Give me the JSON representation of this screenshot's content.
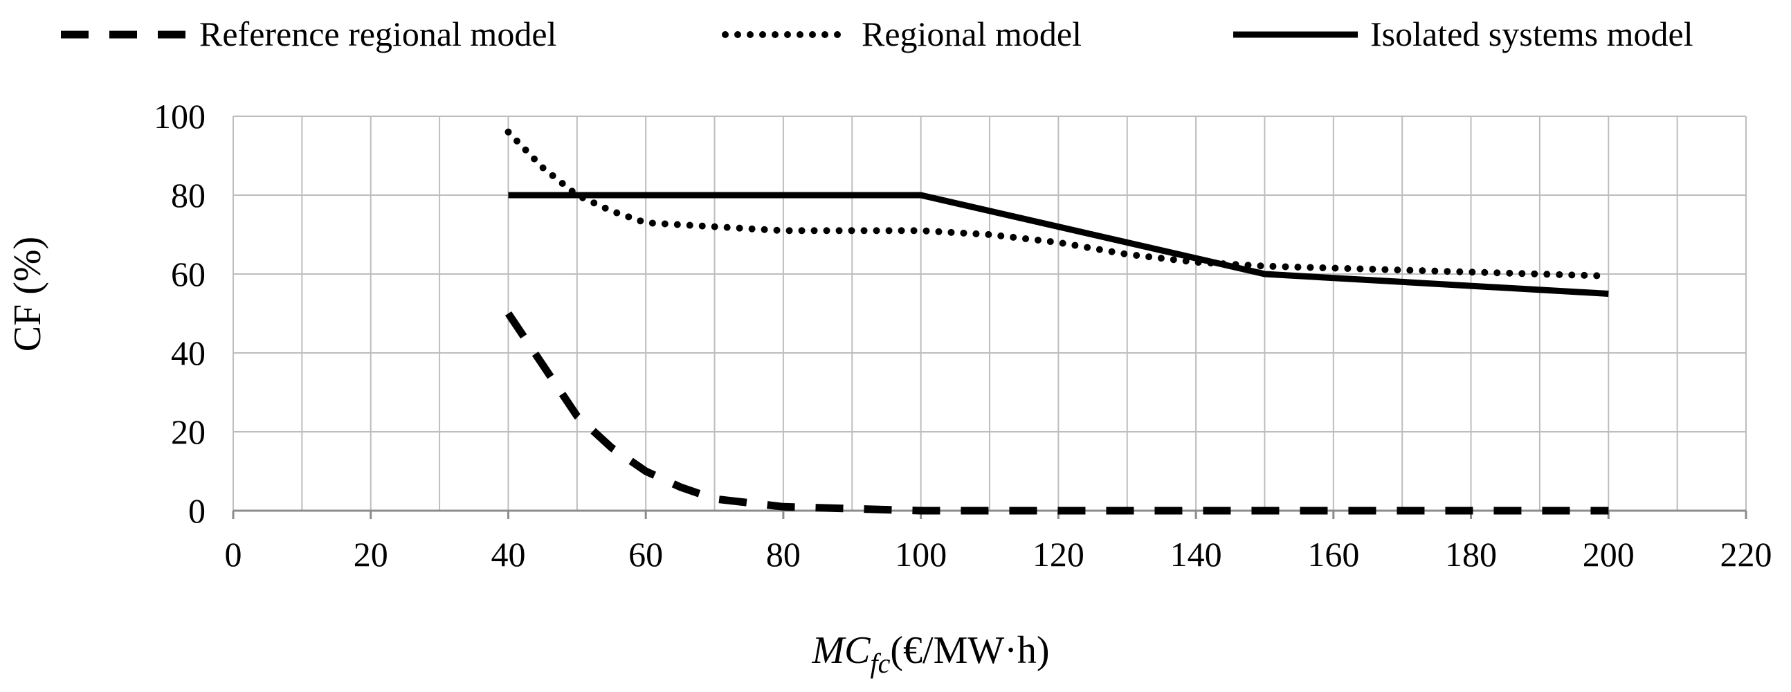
{
  "chart_data": {
    "type": "line",
    "xlabel": "MCfc(€/MW·h)",
    "xlabel_main": "MC",
    "xlabel_sub": "fc",
    "xlabel_unit": "(€/MW·h)",
    "ylabel": "CF (%)",
    "xlim": [
      0,
      220
    ],
    "ylim": [
      0,
      100
    ],
    "x_ticks": [
      0,
      20,
      40,
      60,
      80,
      100,
      120,
      140,
      160,
      180,
      200,
      220
    ],
    "y_ticks": [
      0,
      20,
      40,
      60,
      80,
      100
    ],
    "x_minor_step": 10,
    "grid": true,
    "legend_position": "top",
    "series": [
      {
        "name": "Reference regional model",
        "style": "dashed",
        "x": [
          40,
          45,
          50,
          55,
          60,
          65,
          70,
          80,
          90,
          100,
          110,
          120,
          130,
          140,
          150,
          160,
          170,
          180,
          190,
          200
        ],
        "y": [
          50,
          37,
          24,
          16,
          10,
          6,
          3,
          1,
          0.5,
          0,
          0,
          0,
          0,
          0,
          0,
          0,
          0,
          0,
          0,
          0
        ]
      },
      {
        "name": "Regional model",
        "style": "dotted",
        "x": [
          40,
          45,
          50,
          55,
          60,
          70,
          80,
          90,
          100,
          110,
          120,
          130,
          140,
          150,
          160,
          170,
          180,
          190,
          200
        ],
        "y": [
          96,
          87,
          80,
          76,
          73,
          72,
          71,
          71,
          71,
          70,
          68,
          65,
          63,
          62,
          61.5,
          61,
          60.5,
          60,
          59.5
        ]
      },
      {
        "name": "Isolated systems model",
        "style": "solid",
        "x": [
          40,
          100,
          150,
          200
        ],
        "y": [
          80,
          80,
          60,
          55
        ]
      }
    ],
    "colors": {
      "line": "#000000",
      "grid": "#bdbdbd",
      "axis": "#8c8c8c"
    }
  }
}
